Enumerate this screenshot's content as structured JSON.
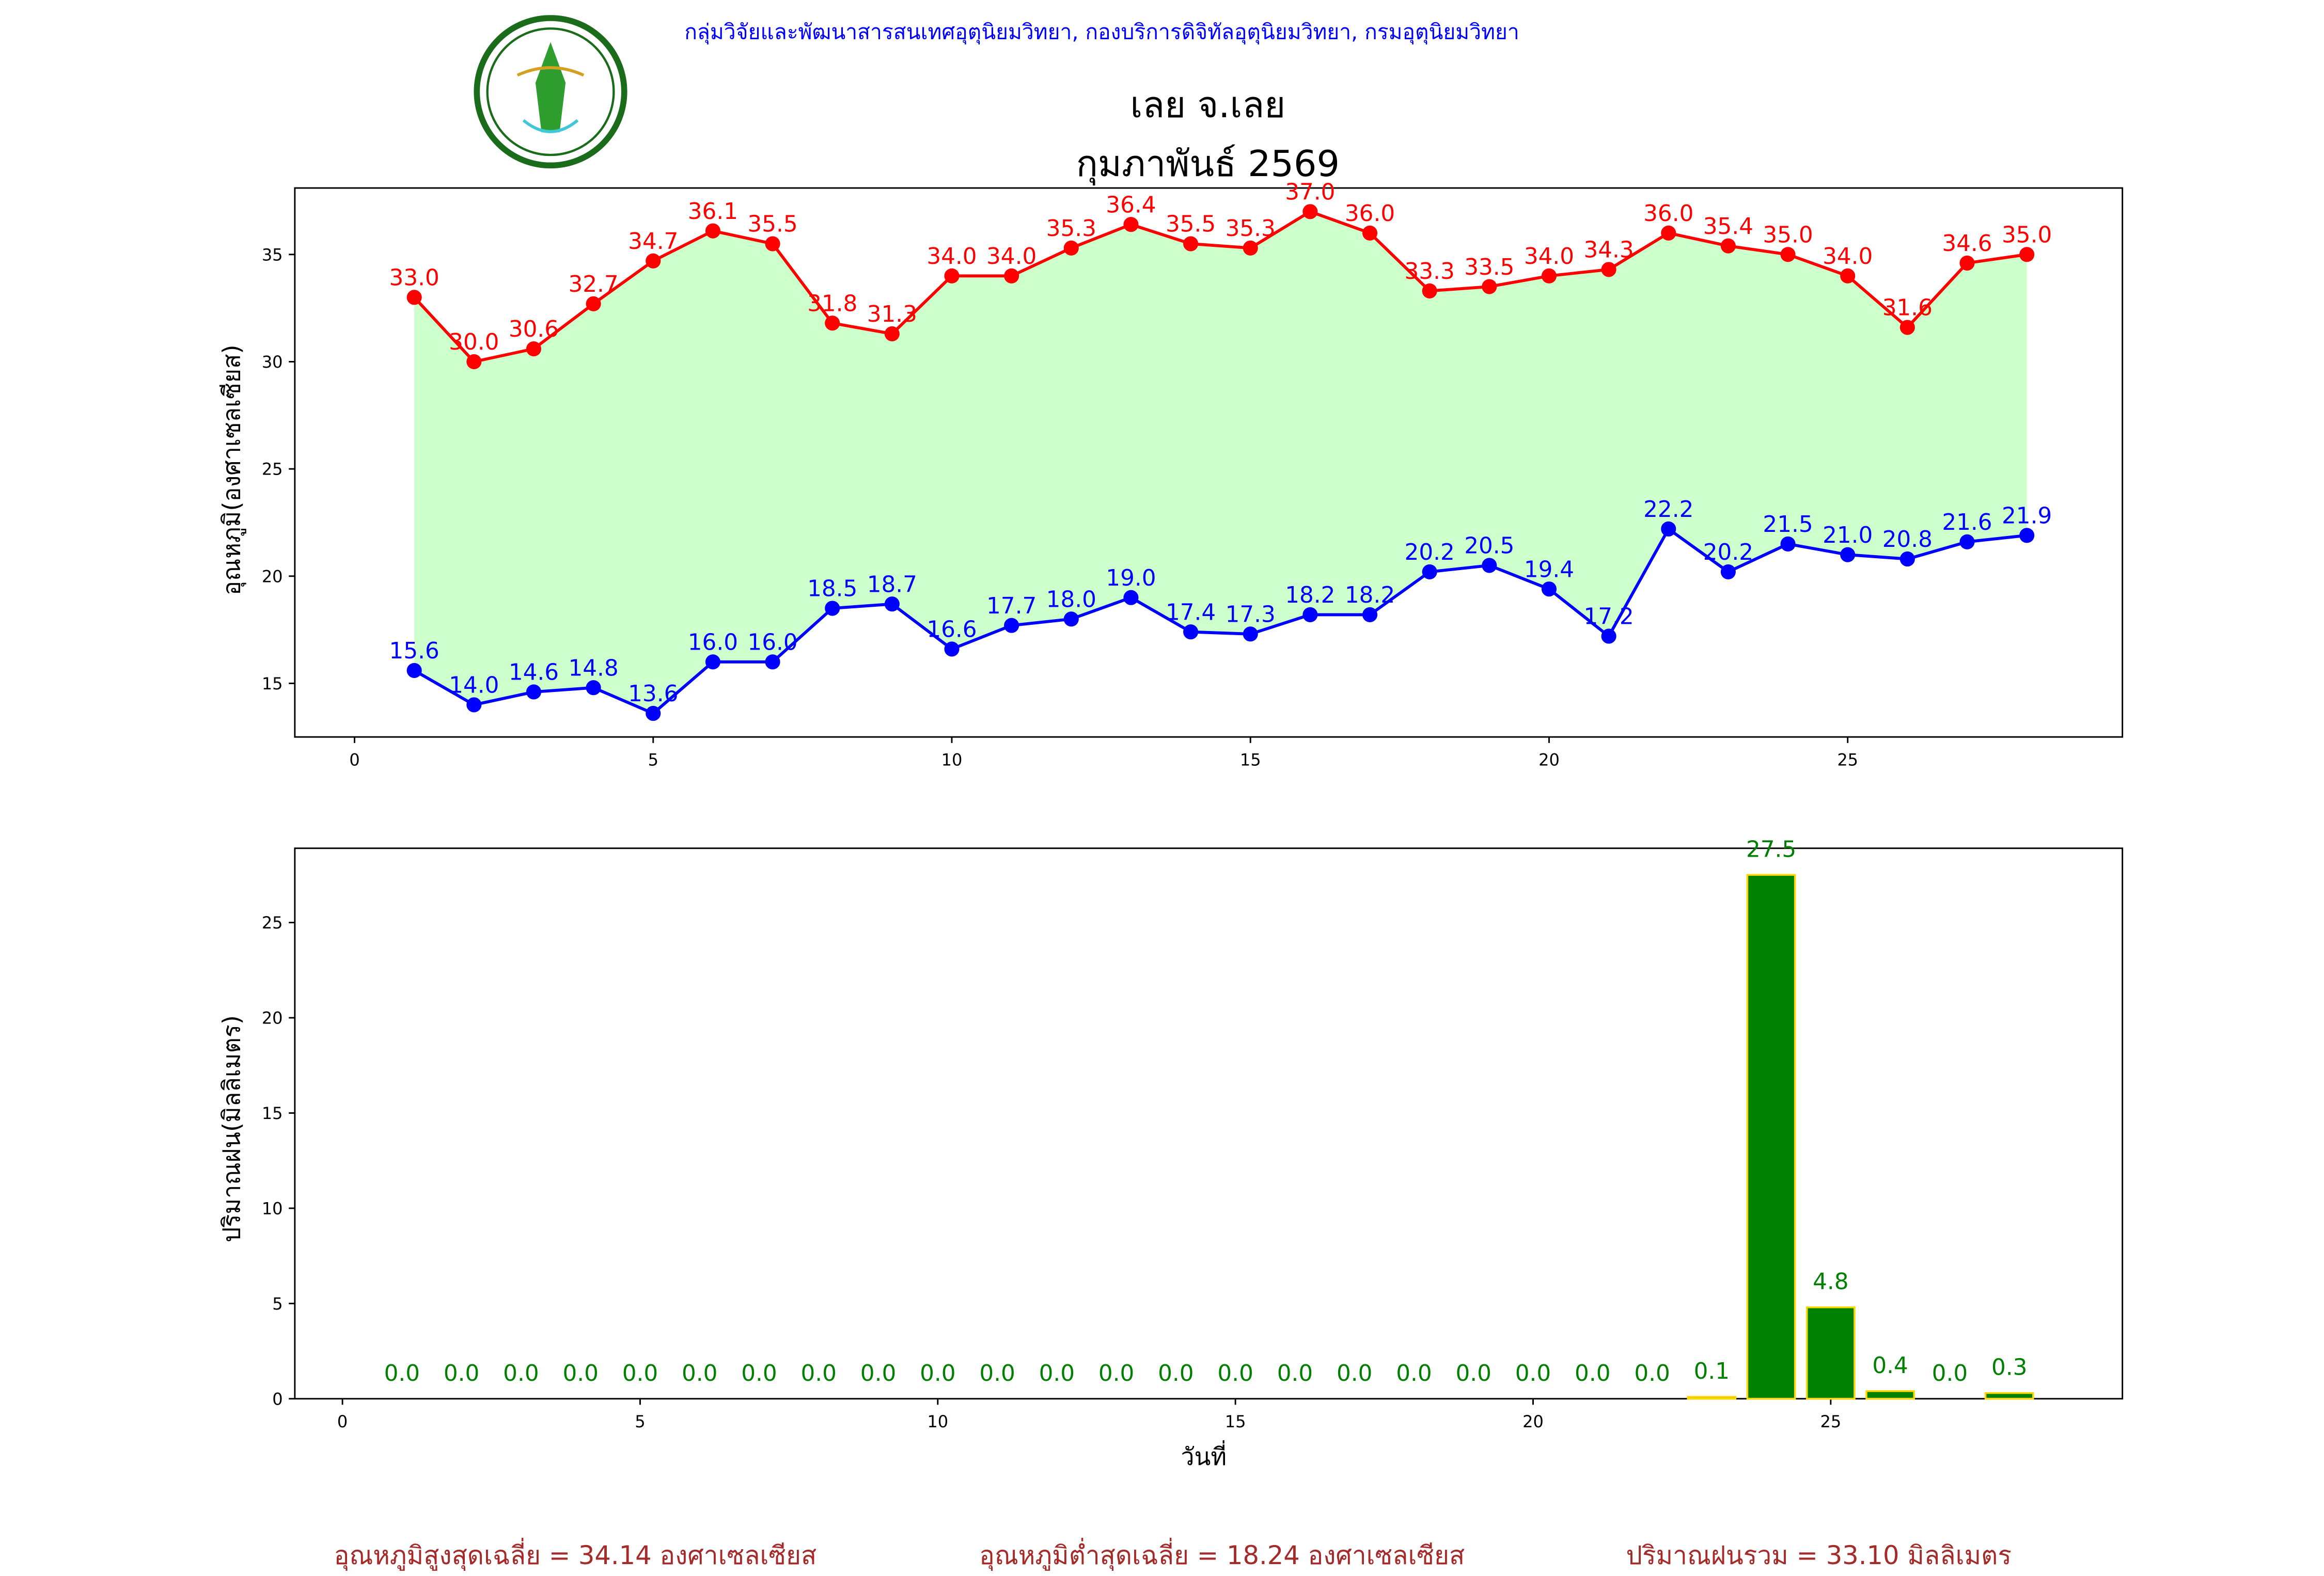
{
  "header": {
    "organization": "กลุ่มวิจัยและพัฒนาสารสนเทศอุตุนิยมวิทยา, กองบริการดิจิทัลอุตุนิยมวิทยา, กรมอุตุนิยมวิทยา",
    "logo_text": "กรมอุตุนิยมวิทยา METEOROLOGICAL DEPARTMENT",
    "title_station": "เลย จ.เลย",
    "title_month": "กุมภาพันธ์ 2569"
  },
  "colors": {
    "max": "#ff0000",
    "min": "#0000ff",
    "fill": "#ccffcc",
    "bar": "#008000",
    "bar_edge": "#ffd700",
    "footer": "#a52a2a"
  },
  "chart_data": [
    {
      "type": "line",
      "ylabel": "อุณหภูมิ(องศาเซลเซียส)",
      "xticks": [
        0,
        5,
        10,
        15,
        20,
        25
      ],
      "yticks": [
        15,
        20,
        25,
        30,
        35
      ],
      "xlim": [
        -1,
        29.6
      ],
      "ylim": [
        12.5,
        38.1
      ],
      "x": [
        1,
        2,
        3,
        4,
        5,
        6,
        7,
        8,
        9,
        10,
        11,
        12,
        13,
        14,
        15,
        16,
        17,
        18,
        19,
        20,
        21,
        22,
        23,
        24,
        25,
        26,
        27,
        28
      ],
      "series": [
        {
          "name": "max",
          "values": [
            33.0,
            30.0,
            30.6,
            32.7,
            34.7,
            36.1,
            35.5,
            31.8,
            31.3,
            34.0,
            34.0,
            35.3,
            36.4,
            35.5,
            35.3,
            37.0,
            36.0,
            33.3,
            33.5,
            34.0,
            34.3,
            36.0,
            35.4,
            35.0,
            34.0,
            31.6,
            34.6,
            35.0
          ]
        },
        {
          "name": "min",
          "values": [
            15.6,
            14.0,
            14.6,
            14.8,
            13.6,
            16.0,
            16.0,
            18.5,
            18.7,
            16.6,
            17.7,
            18.0,
            19.0,
            17.4,
            17.3,
            18.2,
            18.2,
            20.2,
            20.5,
            19.4,
            17.2,
            22.2,
            20.2,
            21.5,
            21.0,
            20.8,
            21.6,
            21.9
          ]
        }
      ]
    },
    {
      "type": "bar",
      "ylabel": "ปริมาณฝน(มิลลิเมตร)",
      "xlabel": "วันที่",
      "xticks": [
        0,
        5,
        10,
        15,
        20,
        25
      ],
      "yticks": [
        0,
        5,
        10,
        15,
        20,
        25
      ],
      "xlim": [
        -0.8,
        29.9
      ],
      "ylim": [
        0,
        28.9
      ],
      "x": [
        1,
        2,
        3,
        4,
        5,
        6,
        7,
        8,
        9,
        10,
        11,
        12,
        13,
        14,
        15,
        16,
        17,
        18,
        19,
        20,
        21,
        22,
        23,
        24,
        25,
        26,
        27,
        28
      ],
      "values": [
        0.0,
        0.0,
        0.0,
        0.0,
        0.0,
        0.0,
        0.0,
        0.0,
        0.0,
        0.0,
        0.0,
        0.0,
        0.0,
        0.0,
        0.0,
        0.0,
        0.0,
        0.0,
        0.0,
        0.0,
        0.0,
        0.0,
        0.1,
        27.5,
        4.8,
        0.4,
        0.0,
        0.3
      ]
    }
  ],
  "footer": {
    "avg_max": "อุณหภูมิสูงสุดเฉลี่ย = 34.14 องศาเซลเซียส",
    "avg_min": "อุณหภูมิต่ำสุดเฉลี่ย = 18.24 องศาเซลเซียส",
    "total_rain": "ปริมาณฝนรวม = 33.10 มิลลิเมตร"
  }
}
